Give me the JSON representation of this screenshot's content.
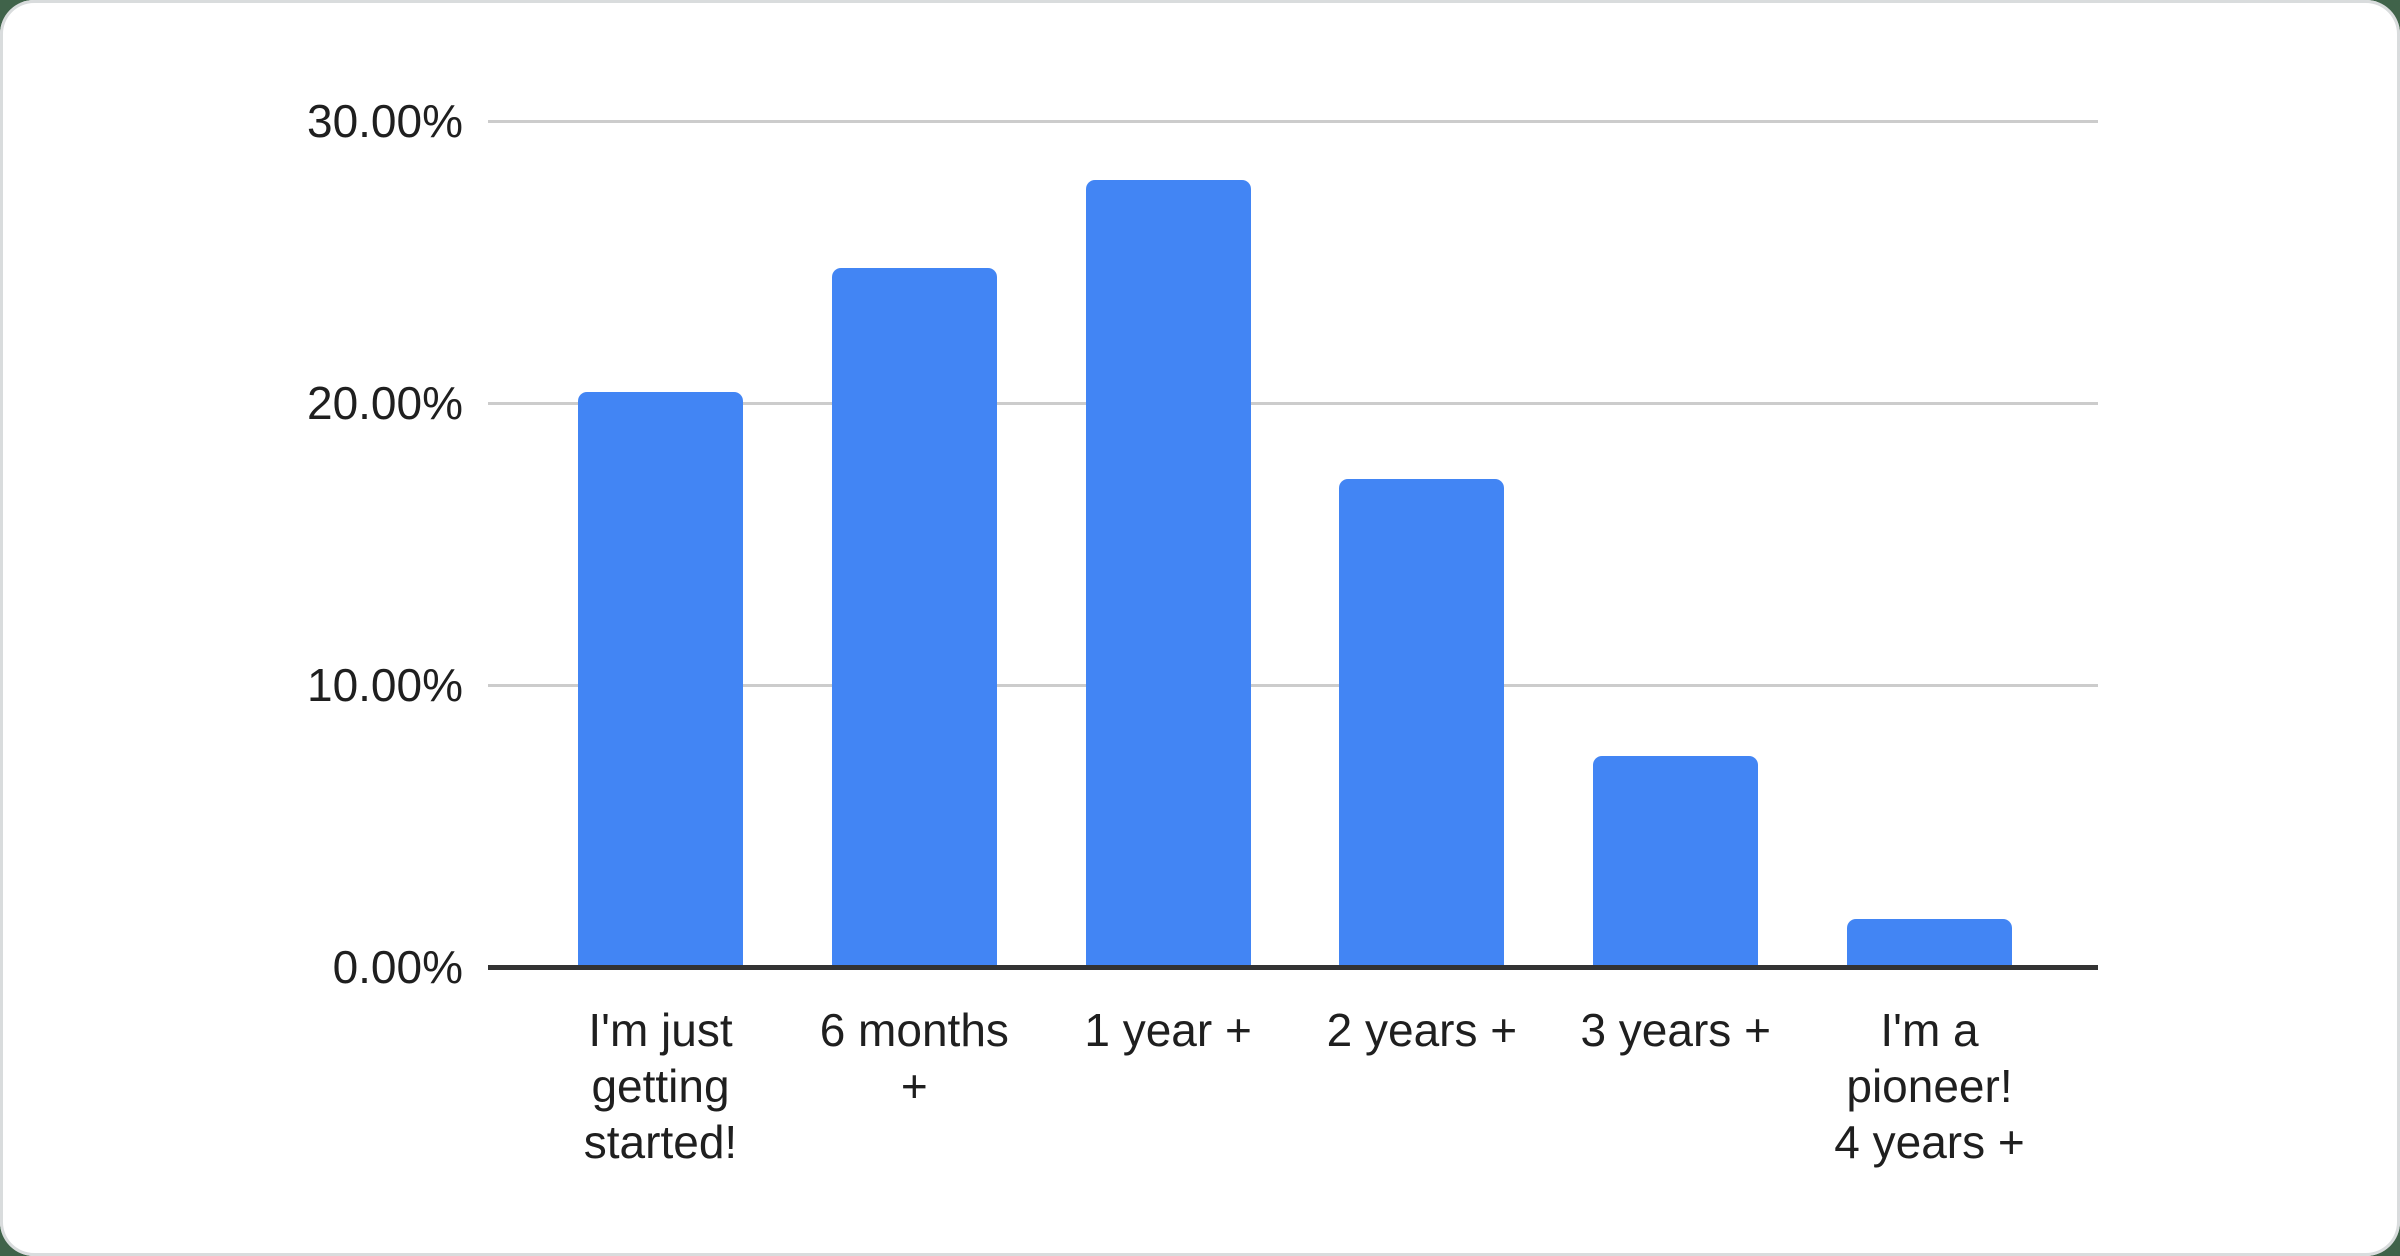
{
  "chart_data": {
    "type": "bar",
    "title": "",
    "xlabel": "",
    "ylabel": "",
    "categories": [
      "I'm just getting started!",
      "6 months +",
      "1 year +",
      "2 years +",
      "3 years +",
      "I'm a pioneer! 4 years +"
    ],
    "category_lines": [
      [
        "I'm just",
        "getting",
        "started!"
      ],
      [
        "6 months",
        "+"
      ],
      [
        "1 year +"
      ],
      [
        "2 years +"
      ],
      [
        "3 years +"
      ],
      [
        "I'm a",
        "pioneer!",
        "4 years +"
      ]
    ],
    "values": [
      20.4,
      24.8,
      27.9,
      17.3,
      7.5,
      1.7
    ],
    "ylim": [
      0,
      30
    ],
    "yticks": [
      {
        "value": 0,
        "label": "0.00%"
      },
      {
        "value": 10,
        "label": "10.00%"
      },
      {
        "value": 20,
        "label": "20.00%"
      },
      {
        "value": 30,
        "label": "30.00%"
      }
    ],
    "grid": true,
    "legend": "none"
  },
  "colors": {
    "bar": "#4285f4",
    "gridline": "#cccccc",
    "axis_line": "#333333",
    "text": "#1f1f1f",
    "card_bg": "#ffffff",
    "card_border": "#d9dcdd",
    "page_bg": "#40634a"
  }
}
